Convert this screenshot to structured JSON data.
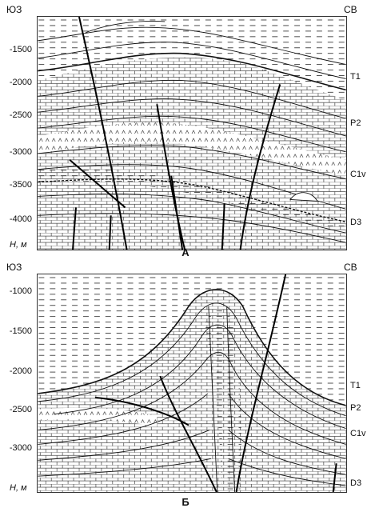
{
  "panels": [
    {
      "caption": "А",
      "direction_left": "ЮЗ",
      "direction_right": "СВ",
      "axis_label": "H, м",
      "depth_ticks": [
        "-1500",
        "-2000",
        "-2500",
        "-3000",
        "-3500",
        "-4000"
      ],
      "strat_labels": [
        "T1",
        "P2",
        "C1v",
        "D3"
      ]
    },
    {
      "caption": "Б",
      "direction_left": "ЮЗ",
      "direction_right": "СВ",
      "axis_label": "H, м",
      "depth_ticks": [
        "-1000",
        "-1500",
        "-2000",
        "-2500",
        "-3000"
      ],
      "strat_labels": [
        "T1",
        "P2",
        "C1v",
        "D3"
      ]
    }
  ]
}
